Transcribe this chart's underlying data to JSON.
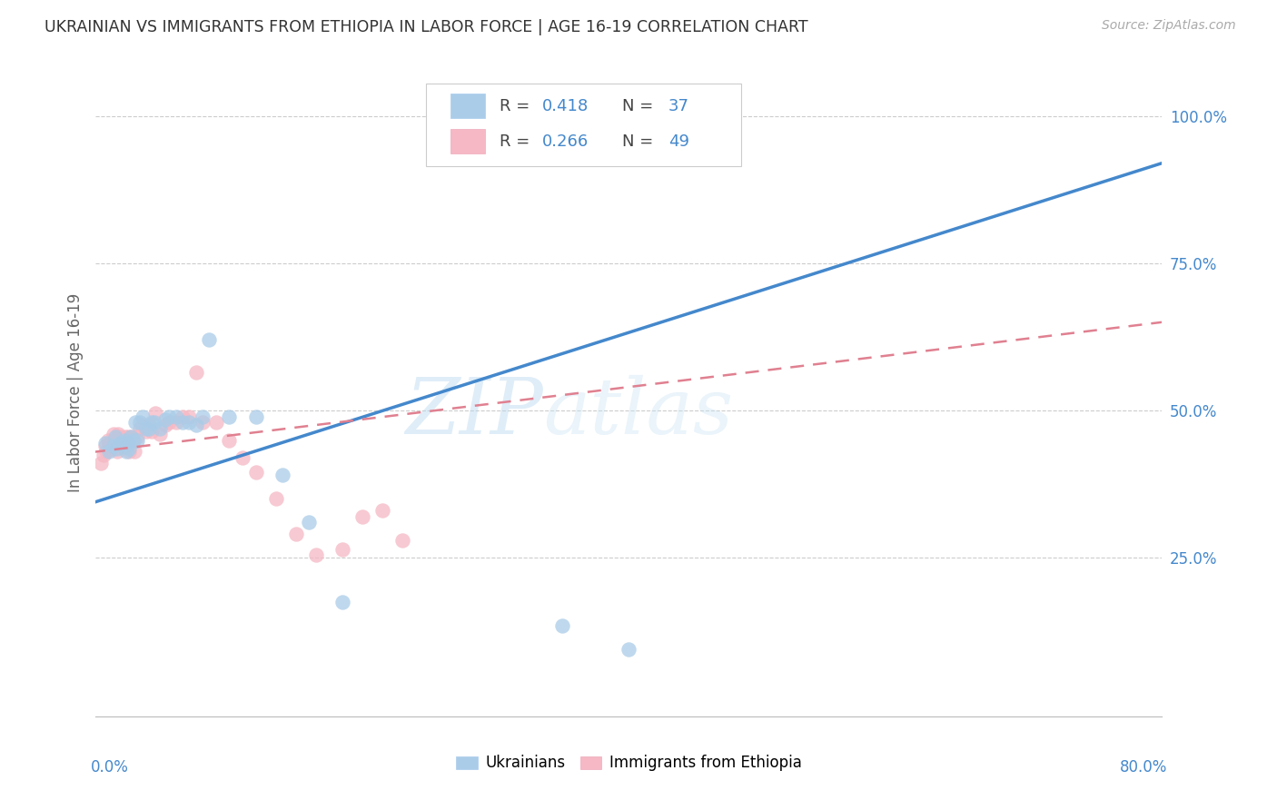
{
  "title": "UKRAINIAN VS IMMIGRANTS FROM ETHIOPIA IN LABOR FORCE | AGE 16-19 CORRELATION CHART",
  "source": "Source: ZipAtlas.com",
  "ylabel": "In Labor Force | Age 16-19",
  "xlim": [
    0.0,
    0.8
  ],
  "ylim": [
    -0.02,
    1.08
  ],
  "ytick_vals": [
    0.25,
    0.5,
    0.75,
    1.0
  ],
  "ytick_labels": [
    "25.0%",
    "50.0%",
    "75.0%",
    "100.0%"
  ],
  "watermark_zip": "ZIP",
  "watermark_atlas": "atlas",
  "blue_scatter": "#aacce8",
  "pink_scatter": "#f5b8c4",
  "blue_line": "#4488cc",
  "pink_line": "#e08090",
  "text_dark": "#444444",
  "text_blue": "#4488cc",
  "ukr_x": [
    0.007,
    0.01,
    0.013,
    0.015,
    0.016,
    0.018,
    0.02,
    0.022,
    0.023,
    0.024,
    0.025,
    0.026,
    0.028,
    0.03,
    0.031,
    0.033,
    0.035,
    0.038,
    0.04,
    0.042,
    0.044,
    0.048,
    0.052,
    0.055,
    0.06,
    0.065,
    0.07,
    0.075,
    0.08,
    0.085,
    0.1,
    0.12,
    0.14,
    0.16,
    0.185,
    0.35,
    0.4
  ],
  "ukr_y": [
    0.445,
    0.43,
    0.44,
    0.455,
    0.435,
    0.445,
    0.445,
    0.45,
    0.43,
    0.445,
    0.435,
    0.455,
    0.45,
    0.48,
    0.45,
    0.48,
    0.49,
    0.47,
    0.47,
    0.48,
    0.48,
    0.47,
    0.485,
    0.49,
    0.49,
    0.48,
    0.48,
    0.475,
    0.49,
    0.62,
    0.49,
    0.49,
    0.39,
    0.31,
    0.175,
    0.135,
    0.095
  ],
  "eth_x": [
    0.004,
    0.006,
    0.007,
    0.008,
    0.009,
    0.01,
    0.011,
    0.012,
    0.013,
    0.014,
    0.015,
    0.016,
    0.017,
    0.018,
    0.019,
    0.02,
    0.021,
    0.022,
    0.023,
    0.024,
    0.025,
    0.027,
    0.029,
    0.031,
    0.033,
    0.035,
    0.038,
    0.04,
    0.042,
    0.045,
    0.048,
    0.052,
    0.055,
    0.06,
    0.065,
    0.07,
    0.075,
    0.08,
    0.09,
    0.1,
    0.11,
    0.12,
    0.135,
    0.15,
    0.165,
    0.185,
    0.2,
    0.215,
    0.23
  ],
  "eth_y": [
    0.41,
    0.425,
    0.44,
    0.43,
    0.45,
    0.445,
    0.44,
    0.435,
    0.46,
    0.435,
    0.45,
    0.43,
    0.46,
    0.455,
    0.445,
    0.45,
    0.445,
    0.455,
    0.445,
    0.455,
    0.43,
    0.455,
    0.43,
    0.455,
    0.47,
    0.475,
    0.465,
    0.475,
    0.465,
    0.495,
    0.46,
    0.475,
    0.48,
    0.48,
    0.49,
    0.49,
    0.565,
    0.48,
    0.48,
    0.45,
    0.42,
    0.395,
    0.35,
    0.29,
    0.255,
    0.265,
    0.32,
    0.33,
    0.28
  ]
}
